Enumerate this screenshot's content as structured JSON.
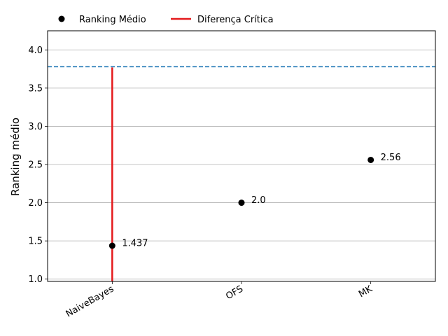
{
  "chart_data": {
    "type": "scatter",
    "ylabel": "Ranking médio",
    "categories": [
      "NaiveBayes",
      "OFS",
      "MK"
    ],
    "ylim": [
      0.97,
      4.25
    ],
    "yticks": [
      1.0,
      1.5,
      2.0,
      2.5,
      3.0,
      3.5,
      4.0
    ],
    "ytick_labels": [
      "1.0",
      "1.5",
      "2.0",
      "2.5",
      "3.0",
      "3.5",
      "4.0"
    ],
    "grid": "horizontal",
    "legend": {
      "placement": "top-left, outside plot",
      "entries": [
        "Ranking Médio",
        "Diferença Crítica"
      ]
    },
    "series": [
      {
        "name": "Ranking Médio",
        "color": "#000000",
        "values": [
          1.437,
          2.0,
          2.56
        ],
        "value_labels": [
          "1.437",
          "2.0",
          "2.56"
        ]
      }
    ],
    "critical_difference": {
      "name": "Diferença Crítica",
      "color": "#e41a1c",
      "category": "NaiveBayes",
      "from": 0.97,
      "to": 3.77
    },
    "threshold_line": {
      "y": 3.78,
      "style": "dashed",
      "color": "#1f77b4"
    }
  }
}
